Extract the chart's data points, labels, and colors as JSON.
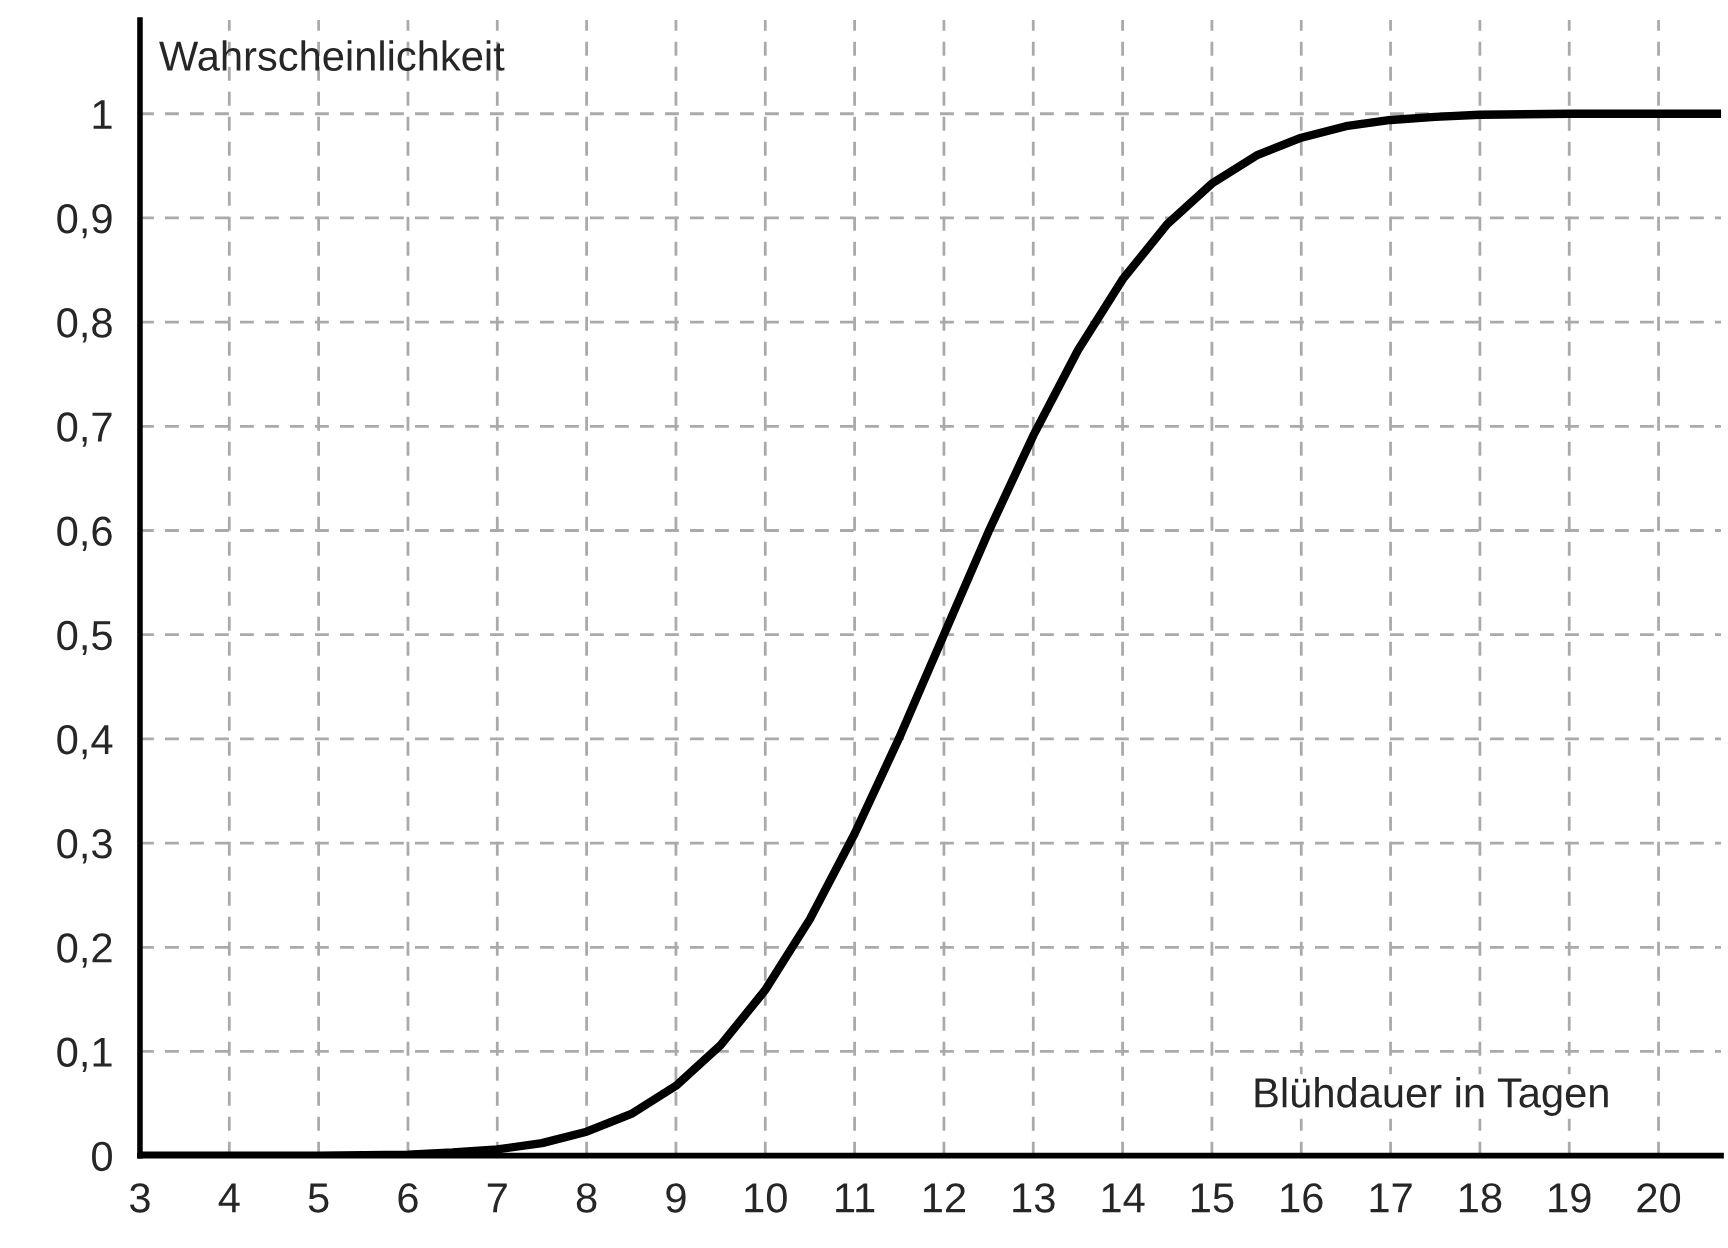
{
  "chart_data": {
    "type": "line",
    "xlabel": "Blühdauer in Tagen",
    "ylabel": "Wahrscheinlichkeit",
    "x": [
      3,
      4,
      5,
      6,
      6.5,
      7,
      7.5,
      8,
      8.5,
      9,
      9.5,
      10,
      10.5,
      11,
      11.5,
      12,
      12.5,
      13,
      13.5,
      14,
      14.5,
      15,
      15.5,
      16,
      16.5,
      17,
      17.5,
      18,
      19,
      20,
      20.7
    ],
    "series": [
      {
        "color": "#000000",
        "values": [
          0,
          0,
          0,
          0.001,
          0.003,
          0.006,
          0.012,
          0.023,
          0.04,
          0.067,
          0.106,
          0.159,
          0.227,
          0.309,
          0.401,
          0.5,
          0.599,
          0.691,
          0.773,
          0.841,
          0.894,
          0.933,
          0.96,
          0.977,
          0.988,
          0.994,
          0.997,
          0.999,
          1,
          1,
          1
        ]
      }
    ],
    "xlim": [
      3,
      20.7
    ],
    "ylim": [
      0,
      1.09
    ],
    "xticks": [
      3,
      4,
      5,
      6,
      7,
      8,
      9,
      10,
      11,
      12,
      13,
      14,
      15,
      16,
      17,
      18,
      19,
      20
    ],
    "yticks": [
      0,
      {
        "value": 0.1,
        "label": "0,1"
      },
      {
        "value": 0.2,
        "label": "0,2"
      },
      {
        "value": 0.3,
        "label": "0,3"
      },
      {
        "value": 0.4,
        "label": "0,4"
      },
      {
        "value": 0.5,
        "label": "0,5"
      },
      {
        "value": 0.6,
        "label": "0,6"
      },
      {
        "value": 0.7,
        "label": "0,7"
      },
      {
        "value": 0.8,
        "label": "0,8"
      },
      {
        "value": 0.9,
        "label": "0,9"
      },
      1
    ],
    "grid": true,
    "line_style": "solid",
    "marker": "none"
  }
}
